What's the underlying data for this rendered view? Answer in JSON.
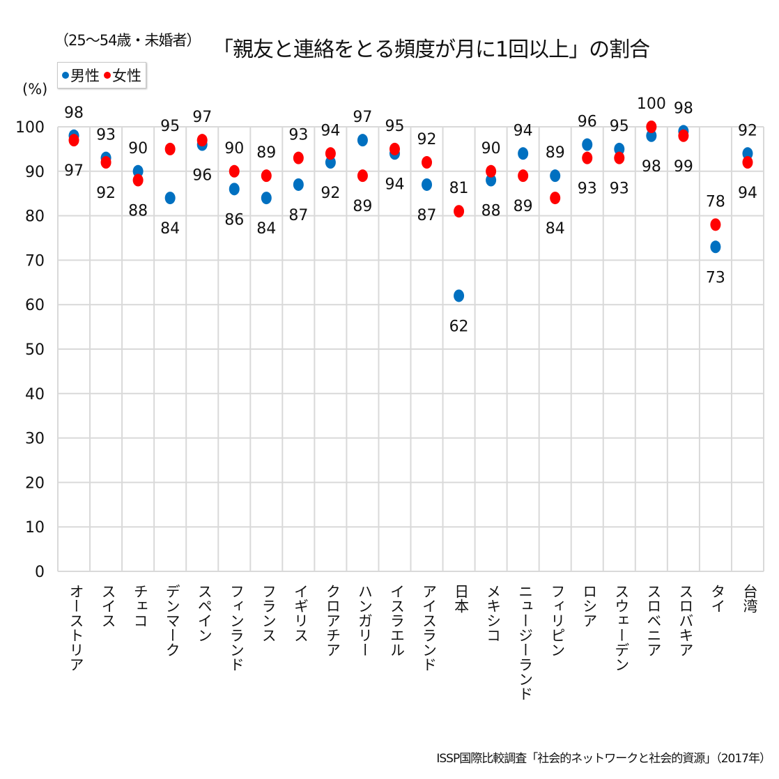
{
  "chart_data": {
    "type": "scatter",
    "title": "「親友と連絡をとる頻度が月に1回以上」の割合",
    "subtitle": "（25〜54歳・未婚者）",
    "ylabel": "(%)",
    "xlabel": "",
    "ylim": [
      0,
      100
    ],
    "yticks": [
      0,
      10,
      20,
      30,
      40,
      50,
      60,
      70,
      80,
      90,
      100
    ],
    "grid": true,
    "legend_position": "top-left",
    "categories": [
      "オーストリア",
      "スイス",
      "チェコ",
      "デンマーク",
      "スペイン",
      "フィンランド",
      "フランス",
      "イギリス",
      "クロアチア",
      "ハンガリー",
      "イスラエル",
      "アイスランド",
      "日本",
      "メキシコ",
      "ニュージーランド",
      "フィリピン",
      "ロシア",
      "スウェーデン",
      "スロベニア",
      "スロバキア",
      "タイ",
      "台湾"
    ],
    "series": [
      {
        "name": "男性",
        "color": "#0070c0",
        "values": [
          98,
          93,
          90,
          84,
          96,
          86,
          84,
          87,
          92,
          97,
          94,
          87,
          62,
          88,
          94,
          89,
          96,
          95,
          98,
          99,
          73,
          94
        ]
      },
      {
        "name": "女性",
        "color": "#ff0000",
        "values": [
          97,
          92,
          88,
          95,
          97,
          90,
          89,
          93,
          94,
          89,
          95,
          92,
          81,
          90,
          89,
          84,
          93,
          93,
          100,
          98,
          78,
          92
        ]
      }
    ],
    "labels_top": [
      "98",
      "93",
      "90",
      "95",
      "97",
      "90",
      "89",
      "93",
      "94",
      "97",
      "95",
      "92",
      "81",
      "90",
      "94",
      "89",
      "96",
      "95",
      "100",
      "98",
      "78",
      "92"
    ],
    "labels_bottom": [
      "97",
      "92",
      "88",
      "84",
      "96",
      "86",
      "84",
      "87",
      "92",
      "89",
      "94",
      "87",
      "62",
      "88",
      "89",
      "84",
      "93",
      "93",
      "98",
      "99",
      "73",
      "94"
    ],
    "source": "ISSP国際比較調査「社会的ネットワークと社会的資源」（2017年）"
  },
  "legend": {
    "male_label": "男性",
    "female_label": "女性",
    "male_color": "#0070c0",
    "female_color": "#ff0000"
  }
}
